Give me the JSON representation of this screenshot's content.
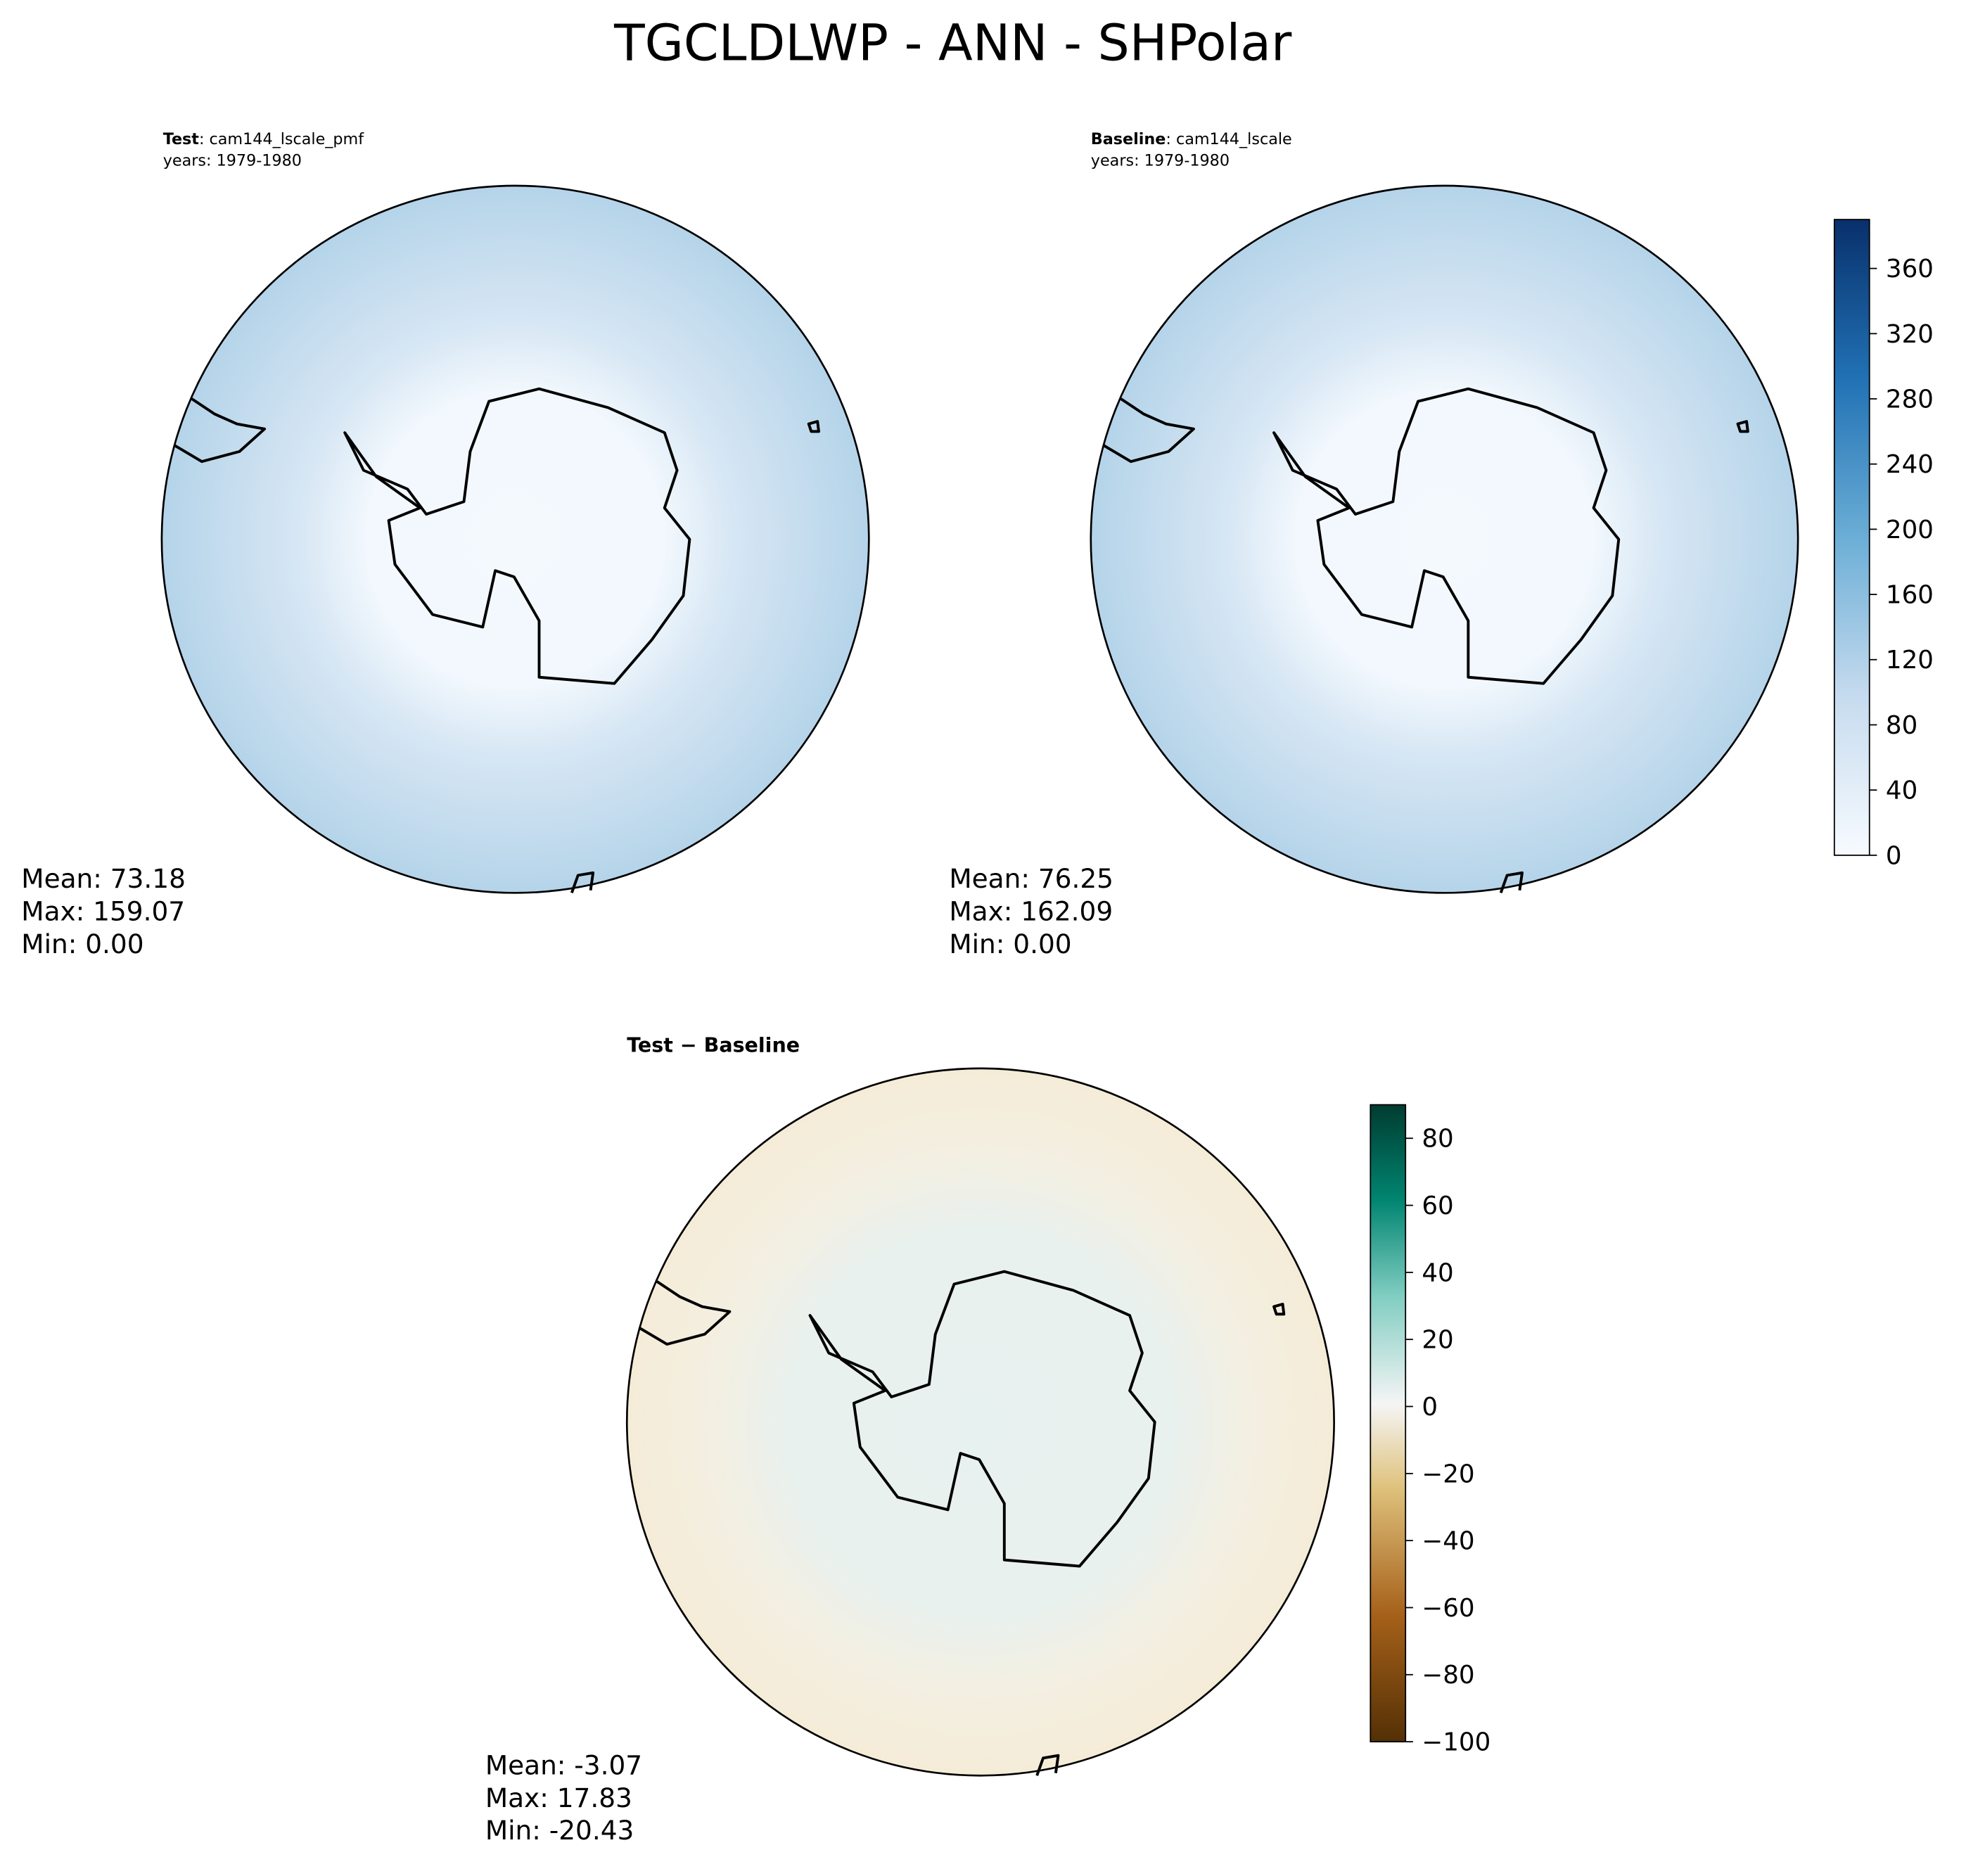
{
  "title": "TGCLDLWP - ANN - SHPolar",
  "panels": [
    {
      "title_bold": "Test",
      "title_rest": ": cam144_lscale_pmf",
      "years": "years: 1979-1980",
      "stats": [
        "Mean: 73.18",
        "Max: 159.07",
        "Min:  0.00"
      ]
    },
    {
      "title_bold": "Baseline",
      "title_rest": ": cam144_lscale",
      "years": "years: 1979-1980",
      "stats": [
        "Mean: 76.25",
        "Max: 162.09",
        "Min:  0.00"
      ]
    },
    {
      "title_bold": "Test − Baseline",
      "stats": [
        "Mean: -3.07",
        "Max: 17.83",
        "Min: -20.43"
      ]
    }
  ],
  "colorbars": [
    {
      "lim": [
        0,
        390
      ],
      "ticks": [
        0,
        40,
        80,
        120,
        160,
        200,
        240,
        280,
        320,
        360
      ]
    },
    {
      "lim": [
        -100,
        90
      ],
      "ticks": [
        {
          "value": -100,
          "label": "−100"
        },
        {
          "value": -80,
          "label": "−80"
        },
        {
          "value": -60,
          "label": "−60"
        },
        {
          "value": -40,
          "label": "−40"
        },
        {
          "value": -20,
          "label": "−20"
        },
        0,
        20,
        40,
        60,
        80
      ]
    }
  ]
}
